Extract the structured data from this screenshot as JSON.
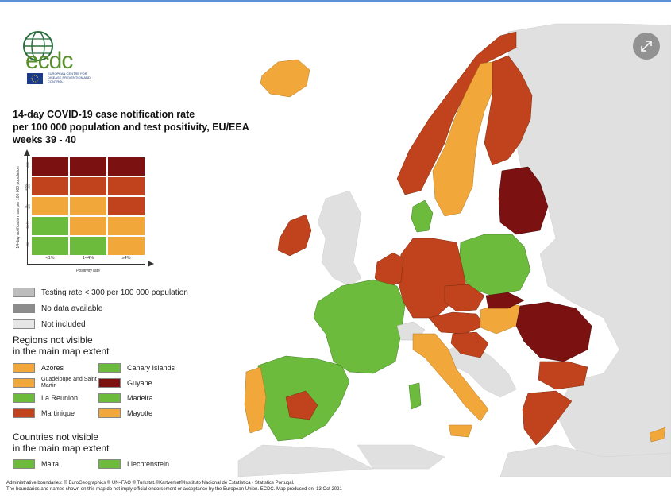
{
  "logo": {
    "text": "ecdc",
    "subtitle": "EUROPEAN CENTRE FOR DISEASE PREVENTION AND CONTROL"
  },
  "title": {
    "line1": "14-day COVID-19 case notification rate",
    "line2": "per 100 000 population and test positivity, EU/EEA",
    "line3": "weeks 39 - 40"
  },
  "matrix": {
    "y_label": "14-day notification rate per 100 000 population",
    "y_ticks": [
      "≥500",
      "≥200-499",
      "75-199",
      "50-74",
      "<50"
    ],
    "x_label": "Positivity rate",
    "x_ticks": [
      "<1%",
      "1<4%",
      "≥4%"
    ],
    "cells": [
      [
        "#7b1111",
        "#7b1111",
        "#7b1111"
      ],
      [
        "#c0431d",
        "#c0431d",
        "#c0431d"
      ],
      [
        "#f2a73b",
        "#f2a73b",
        "#c0431d"
      ],
      [
        "#6cbb3c",
        "#f2a73b",
        "#f2a73b"
      ],
      [
        "#6cbb3c",
        "#6cbb3c",
        "#f2a73b"
      ]
    ]
  },
  "legend": {
    "testing": {
      "label": "Testing rate < 300 per 100 000 population",
      "color": "#bdbdbd"
    },
    "nodata": {
      "label": "No data available",
      "color": "#8c8c8c"
    },
    "notincluded": {
      "label": "Not included",
      "color": "#e6e6e6"
    }
  },
  "regions_title": {
    "line1": "Regions not visible",
    "line2": "in the main map extent"
  },
  "regions": [
    {
      "label": "Azores",
      "color": "#f2a73b"
    },
    {
      "label": "Canary Islands",
      "color": "#6cbb3c"
    },
    {
      "label": "Guadeloupe and Saint Martin",
      "color": "#f2a73b"
    },
    {
      "label": "Guyane",
      "color": "#7b1111"
    },
    {
      "label": "La Reunion",
      "color": "#6cbb3c"
    },
    {
      "label": "Madeira",
      "color": "#6cbb3c"
    },
    {
      "label": "Martinique",
      "color": "#c0431d"
    },
    {
      "label": "Mayotte",
      "color": "#f2a73b"
    }
  ],
  "countries_title": {
    "line1": "Countries not visible",
    "line2": "in the main map extent"
  },
  "countries": [
    {
      "label": "Malta",
      "color": "#6cbb3c"
    },
    {
      "label": "Liechtenstein",
      "color": "#6cbb3c"
    }
  ],
  "footer": {
    "line1": "Administrative boundaries: © EuroGeographics © UN–FAO © Turkstat.©Kartverket©Instituto Nacional de Estatística - Statistics Portugal.",
    "line2": "The boundaries and names shown on this map do not imply official endorsement or acceptance by the European Union. ECDC. Map produced on: 13 Oct 2021"
  },
  "colors": {
    "dark_red": "#7b1111",
    "red": "#c0431d",
    "orange": "#f2a73b",
    "green": "#6cbb3c",
    "grey": "#d9d9d9",
    "sea": "#ffffff"
  },
  "icons": {
    "expand": "expand-arrows-icon",
    "globe": "globe-logo-icon",
    "eu_flag": "eu-flag-icon"
  }
}
